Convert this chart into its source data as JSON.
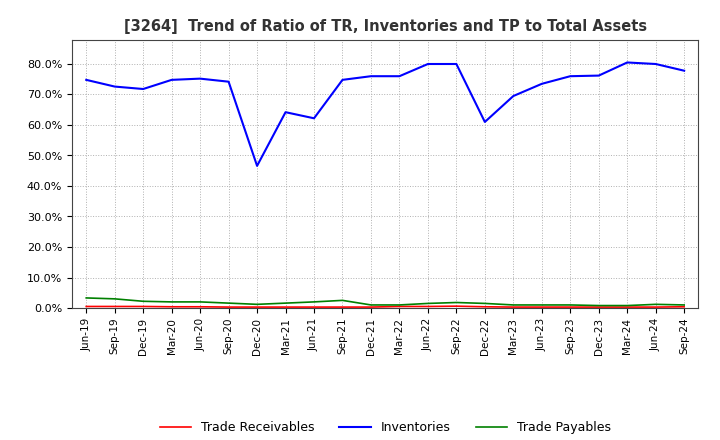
{
  "title": "[3264]  Trend of Ratio of TR, Inventories and TP to Total Assets",
  "x_labels": [
    "Jun-19",
    "Sep-19",
    "Dec-19",
    "Mar-20",
    "Jun-20",
    "Sep-20",
    "Dec-20",
    "Mar-21",
    "Jun-21",
    "Sep-21",
    "Dec-21",
    "Mar-22",
    "Jun-22",
    "Sep-22",
    "Dec-22",
    "Mar-23",
    "Jun-23",
    "Sep-23",
    "Dec-23",
    "Mar-24",
    "Jun-24",
    "Sep-24"
  ],
  "inventories": [
    0.748,
    0.726,
    0.718,
    0.748,
    0.752,
    0.742,
    0.466,
    0.642,
    0.622,
    0.748,
    0.76,
    0.76,
    0.8,
    0.8,
    0.61,
    0.695,
    0.735,
    0.76,
    0.762,
    0.805,
    0.8,
    0.778
  ],
  "trade_receivables": [
    0.005,
    0.005,
    0.005,
    0.004,
    0.004,
    0.003,
    0.003,
    0.003,
    0.003,
    0.003,
    0.003,
    0.005,
    0.005,
    0.006,
    0.004,
    0.003,
    0.003,
    0.003,
    0.003,
    0.003,
    0.003,
    0.004
  ],
  "trade_payables": [
    0.033,
    0.03,
    0.022,
    0.02,
    0.02,
    0.016,
    0.012,
    0.016,
    0.02,
    0.025,
    0.01,
    0.01,
    0.015,
    0.018,
    0.015,
    0.01,
    0.01,
    0.01,
    0.008,
    0.008,
    0.012,
    0.01
  ],
  "inventories_color": "#0000ff",
  "trade_receivables_color": "#ff0000",
  "trade_payables_color": "#008000",
  "yticks": [
    0.0,
    0.1,
    0.2,
    0.3,
    0.4,
    0.5,
    0.6,
    0.7,
    0.8
  ],
  "background_color": "#ffffff",
  "grid_color": "#b0b0b0"
}
